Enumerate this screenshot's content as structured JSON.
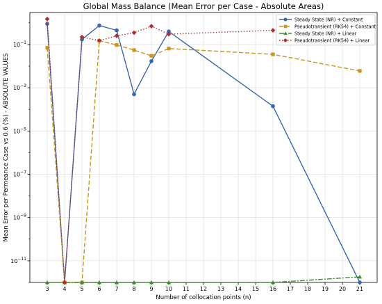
{
  "chart_data": {
    "type": "line",
    "title": "Global Mass Balance (Mean Error per Case - Absolute Areas)",
    "xlabel": "Number of collocation points (n)",
    "ylabel": "Mean Error per Permeance Case vs 0.6 (%) - ABSOLUTE VALUES",
    "yscale": "log",
    "xlim": [
      2,
      22
    ],
    "ylim": [
      1e-12,
      3
    ],
    "grid": true,
    "legend_position": "top-right",
    "x_ticks": [
      3,
      4,
      5,
      6,
      7,
      8,
      9,
      10,
      11,
      12,
      13,
      14,
      15,
      16,
      17,
      18,
      19,
      20,
      21
    ],
    "y_ticks": [
      {
        "value": 1e-11,
        "base": "10",
        "exp": "−11"
      },
      {
        "value": 1e-09,
        "base": "10",
        "exp": "−9"
      },
      {
        "value": 1e-07,
        "base": "10",
        "exp": "−7"
      },
      {
        "value": 1e-05,
        "base": "10",
        "exp": "−5"
      },
      {
        "value": 0.001,
        "base": "10",
        "exp": "−3"
      },
      {
        "value": 0.1,
        "base": "10",
        "exp": "−1"
      }
    ],
    "series": [
      {
        "name": "Steady State (NR) + Constant",
        "color": "#3a67ab",
        "marker": "circle",
        "dash": "",
        "x": [
          3,
          4,
          5,
          6,
          7,
          8,
          9,
          10,
          16,
          21
        ],
        "y": [
          0.9,
          1e-12,
          0.17,
          0.75,
          0.45,
          0.0005,
          0.017,
          0.4,
          0.00014,
          1e-12
        ]
      },
      {
        "name": "Pseudotransient (RK54) + Constant",
        "color": "#c8961e",
        "marker": "square",
        "dash": "6,3",
        "x": [
          3,
          4,
          5,
          6,
          7,
          8,
          9,
          10,
          16,
          21
        ],
        "y": [
          0.07,
          1e-12,
          1e-12,
          0.15,
          0.095,
          0.055,
          0.03,
          0.065,
          0.035,
          0.006
        ]
      },
      {
        "name": "Steady State (NR) + Linear",
        "color": "#3c8c2e",
        "marker": "triangle",
        "dash": "7,2,2,2",
        "x": [
          3,
          4,
          5,
          6,
          7,
          8,
          9,
          10,
          16,
          21
        ],
        "y": [
          1e-12,
          1e-12,
          1e-12,
          1e-12,
          1e-12,
          1e-12,
          1e-12,
          1e-12,
          1e-12,
          1.8e-12
        ]
      },
      {
        "name": "Pseudotransient (RK54) + Linear",
        "color": "#b03030",
        "marker": "diamond",
        "dash": "1.5,2.5",
        "x": [
          3,
          4,
          5,
          6,
          7,
          8,
          9,
          10,
          16,
          21
        ],
        "y": [
          1.5,
          1e-12,
          0.22,
          0.15,
          0.25,
          0.35,
          0.7,
          0.3,
          0.45,
          null
        ]
      }
    ]
  }
}
